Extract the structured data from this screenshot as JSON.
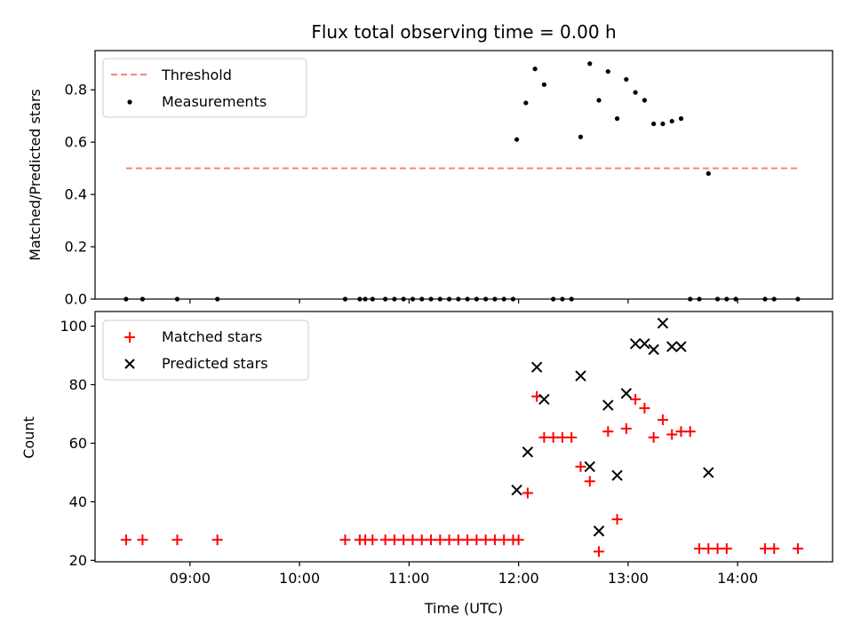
{
  "chart_data": [
    {
      "type": "scatter",
      "title": "Flux total observing time = 0.00 h",
      "xlabel": "",
      "ylabel": "Matched/Predicted stars",
      "x_axis_type": "time",
      "xlim": [
        "08:08",
        "14:52"
      ],
      "ylim": [
        0,
        0.95
      ],
      "yticks": [
        0.0,
        0.2,
        0.4,
        0.6,
        0.8
      ],
      "ytick_labels": [
        "0.0",
        "0.2",
        "0.4",
        "0.6",
        "0.8"
      ],
      "legend_placement": "top-left",
      "grid": false,
      "series": [
        {
          "name": "Threshold",
          "style": "dashed-line",
          "color": "#ff7f7f",
          "x": [
            "08:25",
            "14:33"
          ],
          "y": [
            0.5,
            0.5
          ]
        },
        {
          "name": "Measurements",
          "style": "dot",
          "color": "#000000",
          "x": [
            "08:25",
            "08:34",
            "08:53",
            "09:15",
            "10:25",
            "10:33",
            "10:36",
            "10:40",
            "10:47",
            "10:52",
            "10:57",
            "11:02",
            "11:07",
            "11:12",
            "11:17",
            "11:22",
            "11:27",
            "11:32",
            "11:37",
            "11:42",
            "11:47",
            "11:52",
            "11:57",
            "11:59",
            "12:04",
            "12:09",
            "12:14",
            "12:19",
            "12:24",
            "12:29",
            "12:34",
            "12:39",
            "12:44",
            "12:49",
            "12:54",
            "12:59",
            "13:04",
            "13:09",
            "13:14",
            "13:19",
            "13:24",
            "13:29",
            "13:34",
            "13:39",
            "13:44",
            "13:49",
            "13:54",
            "13:59",
            "14:15",
            "14:20",
            "14:33"
          ],
          "y": [
            0.0,
            0.0,
            0.0,
            0.0,
            0.0,
            0.0,
            0.0,
            0.0,
            0.0,
            0.0,
            0.0,
            0.0,
            0.0,
            0.0,
            0.0,
            0.0,
            0.0,
            0.0,
            0.0,
            0.0,
            0.0,
            0.0,
            0.0,
            0.61,
            0.75,
            0.88,
            0.82,
            0.0,
            0.0,
            0.0,
            0.62,
            0.9,
            0.76,
            0.87,
            0.69,
            0.84,
            0.79,
            0.76,
            0.67,
            0.67,
            0.68,
            0.69,
            0.0,
            0.0,
            0.48,
            0.0,
            0.0,
            0.0,
            0.0,
            0.0,
            0.0
          ]
        }
      ]
    },
    {
      "type": "scatter",
      "title": "",
      "xlabel": "Time (UTC)",
      "ylabel": "Count",
      "x_axis_type": "time",
      "xlim": [
        "08:08",
        "14:52"
      ],
      "ylim": [
        19.5,
        105
      ],
      "xticks": [
        "09:00",
        "10:00",
        "11:00",
        "12:00",
        "13:00",
        "14:00"
      ],
      "yticks": [
        20,
        40,
        60,
        80,
        100
      ],
      "ytick_labels": [
        "20",
        "40",
        "60",
        "80",
        "100"
      ],
      "legend_placement": "top-left",
      "grid": false,
      "series": [
        {
          "name": "Matched stars",
          "marker": "plus",
          "color": "#ff0000",
          "x": [
            "08:25",
            "08:34",
            "08:53",
            "09:15",
            "10:25",
            "10:33",
            "10:36",
            "10:40",
            "10:47",
            "10:52",
            "10:57",
            "11:02",
            "11:07",
            "11:12",
            "11:17",
            "11:22",
            "11:27",
            "11:32",
            "11:37",
            "11:42",
            "11:47",
            "11:52",
            "11:57",
            "12:00",
            "12:05",
            "12:10",
            "12:14",
            "12:19",
            "12:24",
            "12:29",
            "12:34",
            "12:39",
            "12:44",
            "12:49",
            "12:54",
            "12:59",
            "13:04",
            "13:09",
            "13:14",
            "13:19",
            "13:24",
            "13:29",
            "13:34",
            "13:39",
            "13:44",
            "13:49",
            "13:54",
            "14:15",
            "14:20",
            "14:33"
          ],
          "y": [
            27,
            27,
            27,
            27,
            27,
            27,
            27,
            27,
            27,
            27,
            27,
            27,
            27,
            27,
            27,
            27,
            27,
            27,
            27,
            27,
            27,
            27,
            27,
            27,
            43,
            76,
            62,
            62,
            62,
            62,
            52,
            47,
            23,
            64,
            34,
            65,
            75,
            72,
            62,
            68,
            63,
            64,
            64,
            24,
            24,
            24,
            24,
            24,
            24,
            24
          ]
        },
        {
          "name": "Predicted stars",
          "marker": "x",
          "color": "#000000",
          "x": [
            "11:59",
            "12:05",
            "12:10",
            "12:14",
            "12:34",
            "12:39",
            "12:44",
            "12:49",
            "12:54",
            "12:59",
            "13:04",
            "13:09",
            "13:14",
            "13:19",
            "13:24",
            "13:29",
            "13:44"
          ],
          "y": [
            44,
            57,
            86,
            75,
            83,
            52,
            30,
            73,
            49,
            77,
            94,
            94,
            92,
            101,
            93,
            93,
            50
          ]
        }
      ]
    }
  ]
}
